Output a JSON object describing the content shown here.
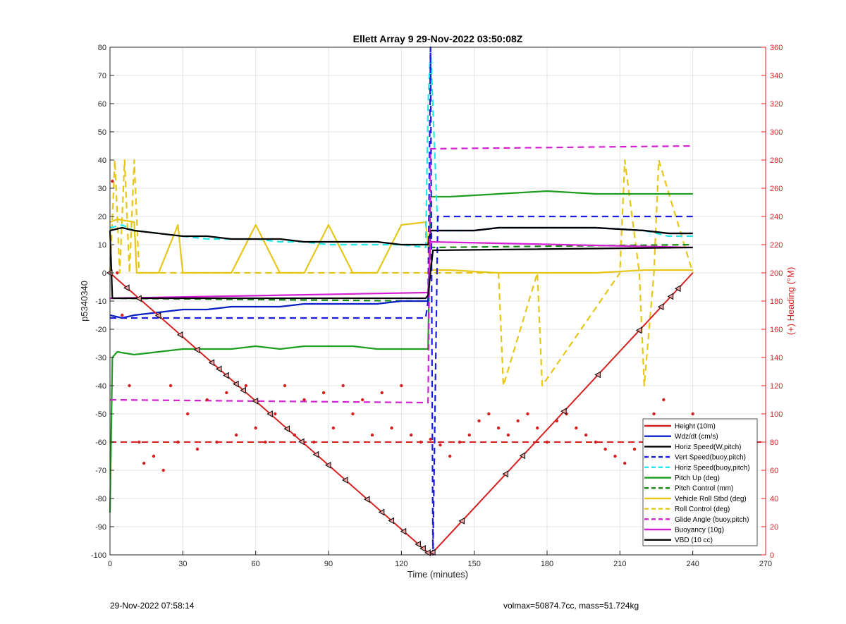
{
  "chart_data": {
    "type": "line",
    "title": "Ellett Array 9 29-Nov-2022 03:50:08Z",
    "xlabel": "Time (minutes)",
    "ylabel": "p5340340",
    "ylabel_right": "(+) Heading (°M)",
    "xlim": [
      0,
      270
    ],
    "ylim": [
      -100,
      80
    ],
    "ylim_right": [
      0,
      360
    ],
    "xticks": [
      0,
      30,
      60,
      90,
      120,
      150,
      180,
      210,
      240,
      270
    ],
    "yticks": [
      -100,
      -90,
      -80,
      -70,
      -60,
      -50,
      -40,
      -30,
      -20,
      -10,
      0,
      10,
      20,
      30,
      40,
      50,
      60,
      70,
      80
    ],
    "yticks_right": [
      0,
      20,
      40,
      60,
      80,
      100,
      120,
      140,
      160,
      180,
      200,
      220,
      240,
      260,
      280,
      300,
      320,
      340,
      360
    ],
    "grid": true,
    "legend_position": "bottom-right",
    "series": [
      {
        "name": "Height (10m)",
        "color": "#d62020",
        "style": "solid",
        "marker": "none",
        "x": [
          0,
          132,
          240
        ],
        "y": [
          0,
          -100,
          0
        ]
      },
      {
        "name": "Wdz/dt (cm/s)",
        "color": "#0a1fc4",
        "style": "solid",
        "marker": "none",
        "x": [
          0,
          5,
          10,
          20,
          30,
          40,
          50,
          60,
          70,
          80,
          90,
          100,
          110,
          120,
          130,
          131,
          132,
          135,
          150,
          160,
          180,
          200,
          220,
          230,
          240
        ],
        "y": [
          -15,
          -16,
          -15,
          -14,
          -13,
          -13,
          -12,
          -12,
          -12,
          -11,
          -11,
          -11,
          -11,
          -10,
          -10,
          -10,
          15,
          15,
          15,
          16,
          16,
          16,
          15,
          14,
          14
        ]
      },
      {
        "name": "Horiz Speed(W,pitch)",
        "color": "#000000",
        "style": "solid",
        "marker": "none",
        "x": [
          0,
          5,
          10,
          20,
          30,
          40,
          50,
          60,
          70,
          80,
          90,
          100,
          110,
          120,
          130,
          131,
          132,
          135,
          150,
          160,
          180,
          200,
          220,
          230,
          240
        ],
        "y": [
          15,
          16,
          15,
          14,
          13,
          13,
          12,
          12,
          12,
          11,
          11,
          11,
          11,
          10,
          10,
          10,
          15,
          15,
          15,
          16,
          16,
          16,
          15,
          14,
          14
        ]
      },
      {
        "name": "Vert Speed(buoy,pitch)",
        "color": "#1a1ae0",
        "style": "dashed",
        "marker": "none",
        "x": [
          0,
          10,
          130,
          131,
          132,
          133,
          135,
          240
        ],
        "y": [
          -16,
          -16,
          -16,
          -10,
          80,
          -100,
          20,
          20
        ]
      },
      {
        "name": "Horiz Speed(buoy,pitch)",
        "color": "#1fe8e8",
        "style": "dashed",
        "marker": "none",
        "x": [
          0,
          5,
          10,
          20,
          30,
          40,
          50,
          60,
          70,
          80,
          90,
          100,
          110,
          120,
          130,
          131,
          132,
          135,
          150,
          160,
          180,
          200,
          220,
          230,
          240
        ],
        "y": [
          16,
          17,
          15,
          14,
          13,
          12,
          12,
          12,
          11,
          11,
          10,
          10,
          10,
          10,
          9,
          60,
          80,
          15,
          15,
          16,
          16,
          16,
          15,
          13,
          13
        ]
      },
      {
        "name": "Pitch Up (deg)",
        "color": "#1e9e1e",
        "style": "solid",
        "marker": "none",
        "x": [
          0,
          1,
          3,
          10,
          20,
          30,
          40,
          50,
          60,
          70,
          80,
          90,
          100,
          110,
          120,
          130,
          131,
          132,
          140,
          160,
          180,
          200,
          220,
          235,
          240
        ],
        "y": [
          -85,
          -30,
          -28,
          -29,
          -28,
          -27,
          -27,
          -27,
          -26,
          -27,
          -26,
          -26,
          -26,
          -27,
          -27,
          -27,
          -27,
          27,
          27,
          28,
          29,
          28,
          28,
          28,
          28
        ]
      },
      {
        "name": "Pitch Control (mm)",
        "color": "#168a16",
        "style": "dashed",
        "marker": "none",
        "x": [
          0,
          130,
          131,
          132,
          240
        ],
        "y": [
          -9,
          -10,
          -10,
          9,
          10
        ]
      },
      {
        "name": "Vehicle Roll Stbd (deg)",
        "color": "#e6c619",
        "style": "solid",
        "marker": "none",
        "x": [
          0,
          3,
          10,
          11,
          20,
          28,
          30,
          40,
          50,
          60,
          70,
          80,
          90,
          100,
          110,
          120,
          130,
          132,
          140,
          160,
          170,
          180,
          200,
          220,
          240
        ],
        "y": [
          18,
          19,
          18,
          0,
          0,
          17,
          0,
          0,
          0,
          17,
          0,
          0,
          17,
          0,
          0,
          17,
          18,
          1,
          1,
          0,
          0,
          0,
          0,
          1,
          1
        ]
      },
      {
        "name": "Roll Control (deg)",
        "color": "#e6c619",
        "style": "dashed",
        "marker": "none",
        "x": [
          0,
          2,
          4,
          6,
          8,
          10,
          12,
          14,
          130,
          132,
          160,
          162,
          176,
          178,
          210,
          212,
          218,
          220,
          224,
          226,
          240
        ],
        "y": [
          0,
          40,
          0,
          40,
          0,
          40,
          0,
          0,
          0,
          0,
          0,
          -40,
          0,
          -40,
          0,
          40,
          0,
          -40,
          0,
          40,
          0
        ]
      },
      {
        "name": "Glide Angle (buoy,pitch)",
        "color": "#d41ed4",
        "style": "dashed",
        "marker": "none",
        "x": [
          0,
          130,
          131,
          132,
          240
        ],
        "y": [
          -45,
          -46,
          -46,
          44,
          45
        ]
      },
      {
        "name": "Buoyancy (10g)",
        "color": "#d41ed4",
        "style": "solid",
        "marker": "none",
        "x": [
          0,
          130,
          131,
          132,
          240
        ],
        "y": [
          -9,
          -7,
          -7,
          11,
          9
        ]
      },
      {
        "name": "VBD (10 cc)",
        "color": "#000000",
        "style": "solid",
        "marker": "none",
        "x": [
          0,
          1,
          2,
          130,
          131,
          133,
          240
        ],
        "y": [
          15,
          -9,
          -9,
          -9,
          -8,
          8,
          9
        ]
      }
    ],
    "heading_points": {
      "color": "#d62020",
      "x": [
        1,
        3,
        5,
        8,
        12,
        14,
        18,
        22,
        25,
        28,
        32,
        36,
        40,
        44,
        48,
        52,
        56,
        60,
        64,
        68,
        72,
        76,
        80,
        84,
        88,
        92,
        96,
        100,
        104,
        108,
        112,
        116,
        120,
        124,
        128,
        132,
        136,
        140,
        144,
        148,
        152,
        156,
        160,
        164,
        168,
        172,
        176,
        180,
        184,
        188,
        192,
        196,
        200,
        204,
        208,
        212,
        216,
        220,
        224,
        228,
        232,
        236,
        240
      ],
      "y": [
        265,
        200,
        170,
        120,
        80,
        65,
        70,
        60,
        120,
        80,
        100,
        75,
        110,
        80,
        115,
        85,
        120,
        90,
        80,
        100,
        120,
        85,
        110,
        80,
        115,
        90,
        120,
        100,
        110,
        85,
        115,
        90,
        120,
        85,
        80,
        82,
        78,
        70,
        80,
        85,
        95,
        100,
        90,
        85,
        95,
        100,
        90,
        80,
        95,
        100,
        90,
        85,
        80,
        75,
        70,
        65,
        75,
        85,
        100,
        110,
        95,
        90,
        100
      ]
    },
    "heading_reference": {
      "y": 80,
      "color": "#d62020"
    },
    "dive_markers_x": [
      0,
      7,
      12,
      20,
      29,
      36,
      42,
      45,
      48,
      52,
      55,
      60,
      66,
      73,
      79,
      85,
      90,
      97,
      106,
      112,
      116,
      121,
      127,
      129,
      131,
      133,
      145,
      163,
      170,
      187,
      201,
      218,
      227,
      231,
      234
    ]
  },
  "footer": {
    "timestamp": "29-Nov-2022 07:58:14",
    "info": "volmax=50874.7cc, mass=51.724kg"
  }
}
